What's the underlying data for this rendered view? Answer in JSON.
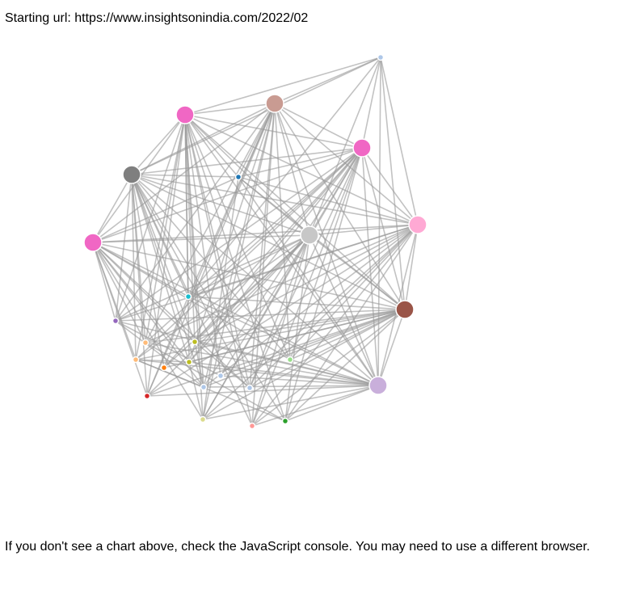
{
  "header": {
    "starting_url_label": "Starting url: https://www.insightsonindia.com/2022/02"
  },
  "footer": {
    "message": "If you don't see a chart above, check the JavaScript console. You may need to use a different browser."
  },
  "colors": {
    "link": "#999999",
    "node_stroke": "#ffffff",
    "background": "#ffffff"
  },
  "graph": {
    "nodes": [
      {
        "id": "n0",
        "group": "large",
        "color": "#f067c4"
      },
      {
        "id": "n1",
        "group": "large",
        "color": "#c99b92"
      },
      {
        "id": "n2",
        "group": "large",
        "color": "#f067c4"
      },
      {
        "id": "n3",
        "group": "large",
        "color": "#7f7f7f"
      },
      {
        "id": "n4",
        "group": "large",
        "color": "#ffa9d4"
      },
      {
        "id": "n5",
        "group": "large",
        "color": "#c7c7c7"
      },
      {
        "id": "n6",
        "group": "large",
        "color": "#f067c4"
      },
      {
        "id": "n7",
        "group": "large",
        "color": "#9a5548"
      },
      {
        "id": "n8",
        "group": "large",
        "color": "#c9afdb"
      },
      {
        "id": "n9",
        "group": "small",
        "color": "#aec7e8"
      },
      {
        "id": "n10",
        "group": "small",
        "color": "#1f77b4"
      },
      {
        "id": "n11",
        "group": "small",
        "color": "#17becf"
      },
      {
        "id": "n12",
        "group": "small",
        "color": "#9467bd"
      },
      {
        "id": "n13",
        "group": "small",
        "color": "#ffbb78"
      },
      {
        "id": "n14",
        "group": "small",
        "color": "#bcbd22"
      },
      {
        "id": "n15",
        "group": "small",
        "color": "#ffbb78"
      },
      {
        "id": "n16",
        "group": "small",
        "color": "#ff7f0e"
      },
      {
        "id": "n17",
        "group": "small",
        "color": "#bcbd22"
      },
      {
        "id": "n18",
        "group": "small",
        "color": "#aec7e8"
      },
      {
        "id": "n19",
        "group": "small",
        "color": "#98df8a"
      },
      {
        "id": "n20",
        "group": "small",
        "color": "#d62728"
      },
      {
        "id": "n21",
        "group": "small",
        "color": "#aec7e8"
      },
      {
        "id": "n22",
        "group": "small",
        "color": "#aec7e8"
      },
      {
        "id": "n23",
        "group": "small",
        "color": "#dbdb8d"
      },
      {
        "id": "n24",
        "group": "small",
        "color": "#ff9896"
      },
      {
        "id": "n25",
        "group": "small",
        "color": "#2ca02c"
      }
    ]
  }
}
